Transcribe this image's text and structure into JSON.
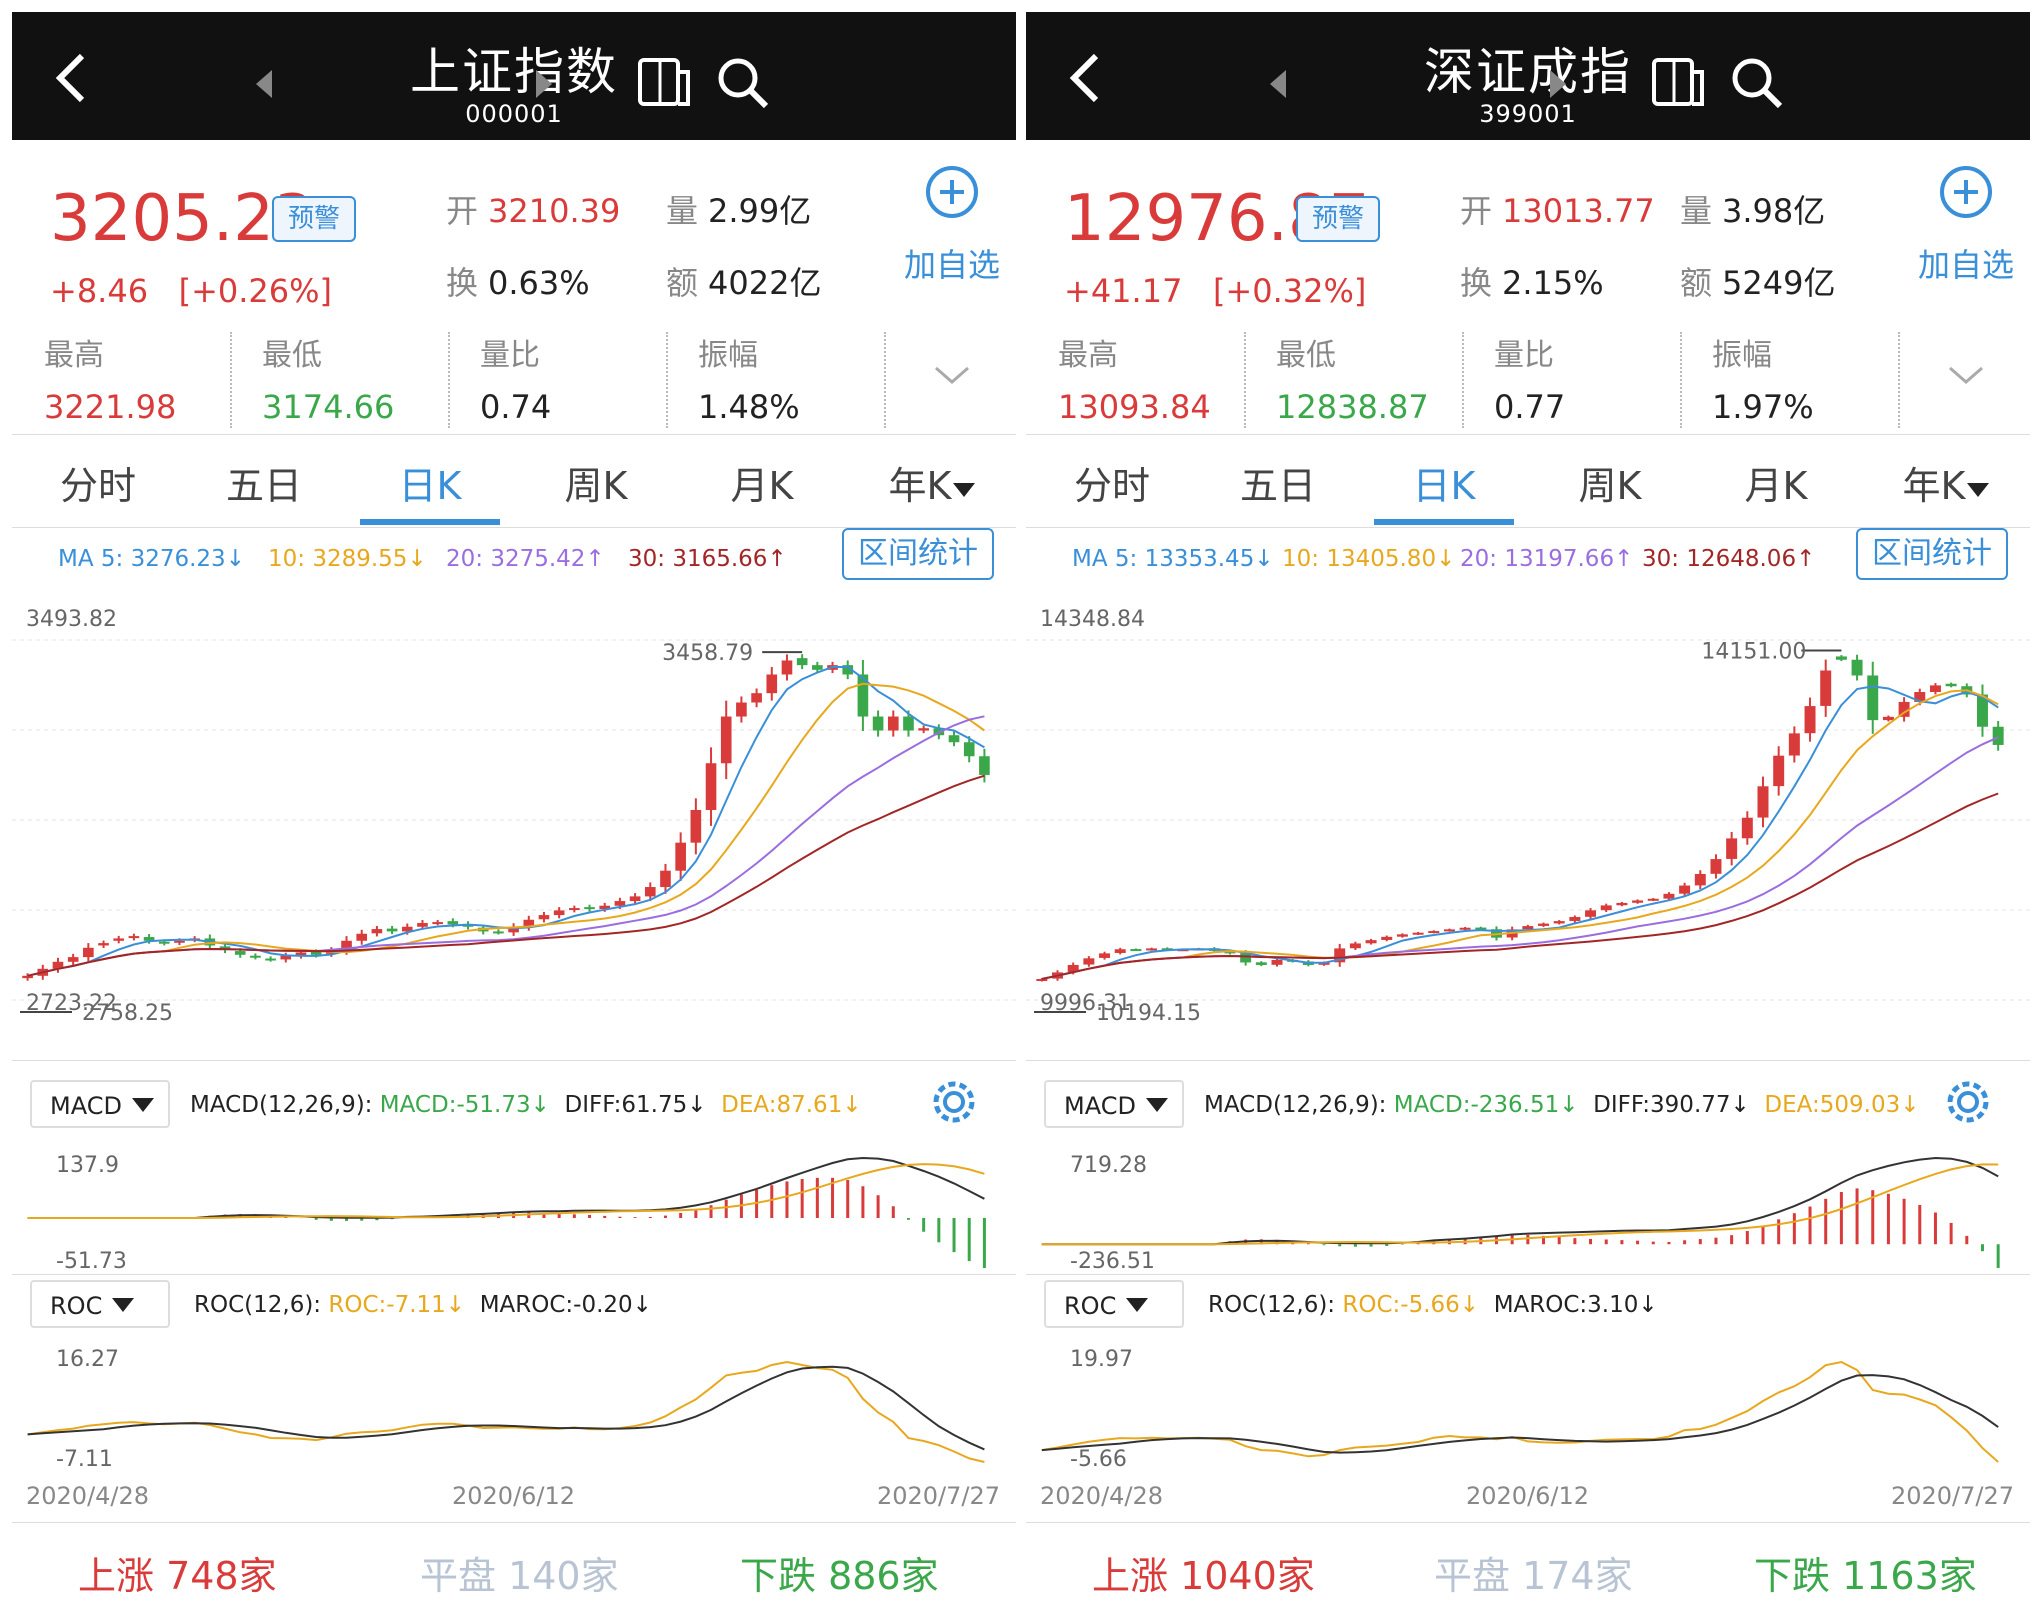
{
  "panels": [
    {
      "header": {
        "title": "上证指数",
        "code": "000001"
      },
      "quote": {
        "price": "3205.23",
        "warn_label": "预警",
        "change": "+8.46",
        "change_pct": "[+0.26%]",
        "open_label": "开",
        "open": "3210.39",
        "volume_label": "量",
        "volume": "2.99亿",
        "turnover_label": "换",
        "turnover": "0.63%",
        "amount_label": "额",
        "amount": "4022亿",
        "add_label": "加自选",
        "high_label": "最高",
        "high": "3221.98",
        "low_label": "最低",
        "low": "3174.66",
        "vratio_label": "量比",
        "vratio": "0.74",
        "amp_label": "振幅",
        "amp": "1.48%"
      },
      "tabs": [
        "分时",
        "五日",
        "日K",
        "周K",
        "月K",
        "年K"
      ],
      "active_tab": 2,
      "ma": {
        "ma5": "MA 5: 3276.23↓",
        "ma10": "10: 3289.55↓",
        "ma20": "20: 3275.42↑",
        "ma30": "30: 3165.66↑"
      },
      "range_button": "区间统计",
      "kline": {
        "top_label": "3493.82",
        "peak_label": "3458.79",
        "low_label": "2758.25",
        "bottom_label": "2723.22",
        "ymin": 2723.22,
        "ymax": 3493.82,
        "closes": [
          2775,
          2790,
          2805,
          2815,
          2835,
          2845,
          2855,
          2860,
          2850,
          2845,
          2850,
          2855,
          2840,
          2830,
          2820,
          2815,
          2810,
          2818,
          2825,
          2820,
          2830,
          2850,
          2865,
          2875,
          2870,
          2880,
          2888,
          2890,
          2885,
          2880,
          2870,
          2868,
          2880,
          2895,
          2905,
          2915,
          2920,
          2918,
          2925,
          2935,
          2945,
          2965,
          3000,
          3060,
          3130,
          3230,
          3330,
          3360,
          3380,
          3420,
          3450,
          3440,
          3430,
          3440,
          3420,
          3330,
          3300,
          3330,
          3300,
          3305,
          3290,
          3275,
          3245,
          3205
        ],
        "opens": [
          2770,
          2775,
          2790,
          2805,
          2815,
          2840,
          2850,
          2856,
          2858,
          2848,
          2846,
          2852,
          2855,
          2838,
          2828,
          2818,
          2812,
          2810,
          2818,
          2826,
          2822,
          2830,
          2850,
          2866,
          2876,
          2870,
          2880,
          2888,
          2892,
          2886,
          2878,
          2870,
          2868,
          2880,
          2896,
          2905,
          2916,
          2922,
          2918,
          2925,
          2935,
          2945,
          2965,
          3000,
          3060,
          3130,
          3230,
          3330,
          3360,
          3380,
          3420,
          3455,
          3440,
          3430,
          3440,
          3420,
          3330,
          3300,
          3330,
          3300,
          3305,
          3290,
          3275,
          3245
        ]
      },
      "macd": {
        "button": "MACD",
        "title": "MACD(12,26,9):",
        "macd": "MACD:-51.73↓",
        "diff": "DIFF:61.75↓",
        "dea": "DEA:87.61↓",
        "top": "137.9",
        "bottom": "-51.73"
      },
      "roc": {
        "button": "ROC",
        "title": "ROC(12,6):",
        "roc": "ROC:-7.11↓",
        "maroc": "MAROC:-0.20↓",
        "top": "16.27",
        "bottom": "-7.11"
      },
      "dates": [
        "2020/4/28",
        "2020/6/12",
        "2020/7/27"
      ],
      "breadth": {
        "up": "上涨 748家",
        "flat": "平盘 140家",
        "down": "下跌 886家"
      }
    },
    {
      "header": {
        "title": "深证成指",
        "code": "399001"
      },
      "quote": {
        "price": "12976.87",
        "warn_label": "预警",
        "change": "+41.17",
        "change_pct": "[+0.32%]",
        "open_label": "开",
        "open": "13013.77",
        "volume_label": "量",
        "volume": "3.98亿",
        "turnover_label": "换",
        "turnover": "2.15%",
        "amount_label": "额",
        "amount": "5249亿",
        "add_label": "加自选",
        "high_label": "最高",
        "high": "13093.84",
        "low_label": "最低",
        "low": "12838.87",
        "vratio_label": "量比",
        "vratio": "0.77",
        "amp_label": "振幅",
        "amp": "1.97%"
      },
      "tabs": [
        "分时",
        "五日",
        "日K",
        "周K",
        "月K",
        "年K"
      ],
      "active_tab": 2,
      "ma": {
        "ma5": "MA 5: 13353.45↓",
        "ma10": "10: 13405.80↓",
        "ma20": "20: 13197.66↑",
        "ma30": "30: 12648.06↑"
      },
      "range_button": "区间统计",
      "kline": {
        "top_label": "14348.84",
        "peak_label": "14151.00",
        "low_label": "10194.15",
        "bottom_label": "9996.31",
        "ymin": 9996.31,
        "ymax": 14348.84,
        "closes": [
          10250,
          10330,
          10420,
          10500,
          10560,
          10610,
          10600,
          10620,
          10600,
          10610,
          10620,
          10590,
          10560,
          10450,
          10420,
          10480,
          10460,
          10420,
          10450,
          10620,
          10680,
          10720,
          10760,
          10790,
          10810,
          10830,
          10850,
          10870,
          10850,
          10750,
          10850,
          10890,
          10920,
          10950,
          11000,
          11080,
          11140,
          11170,
          11200,
          11220,
          11280,
          11380,
          11520,
          11700,
          11950,
          12200,
          12580,
          12950,
          13220,
          13550,
          13980,
          14110,
          13920,
          13380,
          13420,
          13600,
          13720,
          13800,
          13790,
          13690,
          13300,
          13080
        ],
        "opens": [
          10230,
          10255,
          10335,
          10425,
          10505,
          10565,
          10612,
          10602,
          10622,
          10602,
          10612,
          10622,
          10592,
          10562,
          10452,
          10422,
          10482,
          10462,
          10422,
          10452,
          10622,
          10682,
          10722,
          10762,
          10792,
          10812,
          10832,
          10852,
          10872,
          10852,
          10752,
          10852,
          10892,
          10922,
          10952,
          11002,
          11082,
          11142,
          11172,
          11202,
          11222,
          11282,
          11382,
          11522,
          11702,
          11952,
          12202,
          12582,
          12952,
          13222,
          13552,
          14150,
          14110,
          13920,
          13380,
          13420,
          13600,
          13720,
          13820,
          13790,
          13690,
          13300
        ]
      },
      "macd": {
        "button": "MACD",
        "title": "MACD(12,26,9):",
        "macd": "MACD:-236.51↓",
        "diff": "DIFF:390.77↓",
        "dea": "DEA:509.03↓",
        "top": "719.28",
        "bottom": "-236.51"
      },
      "roc": {
        "button": "ROC",
        "title": "ROC(12,6):",
        "roc": "ROC:-5.66↓",
        "maroc": "MAROC:3.10↓",
        "top": "19.97",
        "bottom": "-5.66"
      },
      "dates": [
        "2020/4/28",
        "2020/6/12",
        "2020/7/27"
      ],
      "breadth": {
        "up": "上涨 1040家",
        "flat": "平盘 174家",
        "down": "下跌 1163家"
      }
    }
  ],
  "colors": {
    "up": "#d93a3a",
    "down": "#3aa84a",
    "accent": "#3a8fd9",
    "ma5": "#3a8fd9",
    "ma10": "#e8a81e",
    "ma20": "#9a6de0",
    "ma30": "#a32626"
  },
  "icons": [
    "back-icon",
    "prev-arrow-icon",
    "next-arrow-icon",
    "switch-icon",
    "search-icon",
    "plus-circle-icon",
    "chevron-down-icon",
    "gear-icon"
  ]
}
